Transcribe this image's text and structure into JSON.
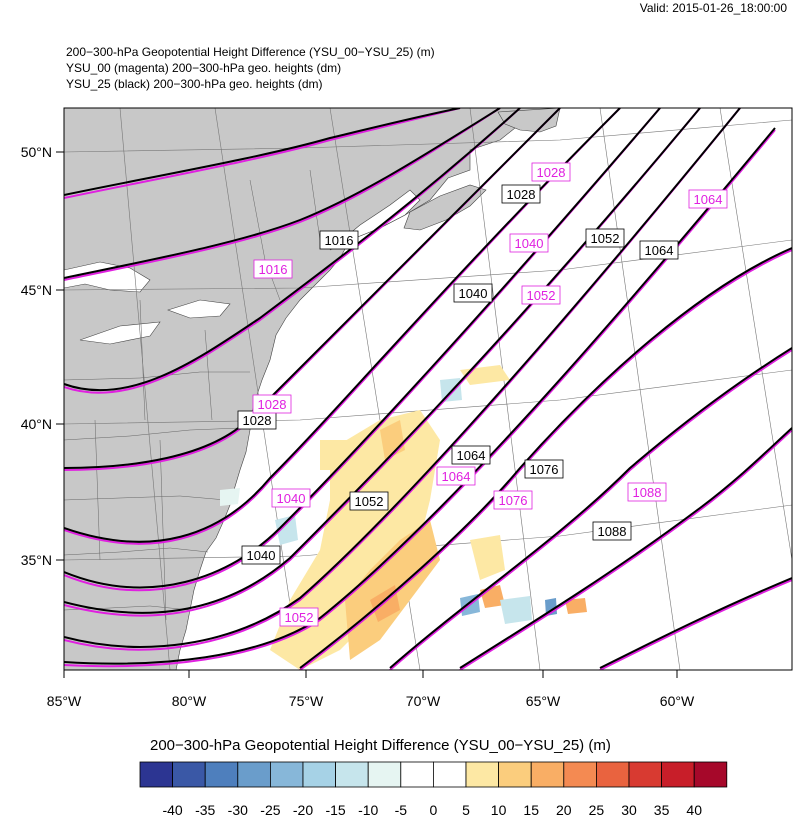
{
  "valid_time": "Valid: 2015-01-26_18:00:00",
  "title_lines": [
    "200−300-hPa Geopotential Height Difference (YSU_00−YSU_25)   (m)",
    "YSU_00 (magenta) 200−300-hPa geo. heights   (dm)",
    "YSU_25 (black) 200−300-hPa geo. heights   (dm)"
  ],
  "axes": {
    "lon_labels": [
      "85°W",
      "80°W",
      "75°W",
      "70°W",
      "65°W",
      "60°W"
    ],
    "lat_labels": [
      "50°N",
      "45°N",
      "40°N",
      "35°N"
    ]
  },
  "contour_labels_black": [
    {
      "text": "1016"
    },
    {
      "text": "1028"
    },
    {
      "text": "1028"
    },
    {
      "text": "1040"
    },
    {
      "text": "1040"
    },
    {
      "text": "1052"
    },
    {
      "text": "1052"
    },
    {
      "text": "1064"
    },
    {
      "text": "1064"
    },
    {
      "text": "1076"
    },
    {
      "text": "1088"
    }
  ],
  "contour_labels_magenta": [
    {
      "text": "1016"
    },
    {
      "text": "1028"
    },
    {
      "text": "1028"
    },
    {
      "text": "1040"
    },
    {
      "text": "1040"
    },
    {
      "text": "1052"
    },
    {
      "text": "1052"
    },
    {
      "text": "1064"
    },
    {
      "text": "1064"
    },
    {
      "text": "1076"
    },
    {
      "text": "1088"
    }
  ],
  "colorbar": {
    "title": "200−300-hPa Geopotential Height Difference (YSU_00−YSU_25)  (m)",
    "levels": [
      "-40",
      "-35",
      "-30",
      "-25",
      "-20",
      "-15",
      "-10",
      "-5",
      "0",
      "5",
      "10",
      "15",
      "20",
      "25",
      "30",
      "35",
      "40"
    ],
    "colors": [
      "#2c3592",
      "#3a58a6",
      "#4e7fbd",
      "#6a9dcb",
      "#87b7d9",
      "#a6d2e6",
      "#c6e5ec",
      "#e6f5f2",
      "#ffffff",
      "#ffffff",
      "#fde8a4",
      "#fbcd7d",
      "#f9ae65",
      "#f48a52",
      "#e9633f",
      "#d83a31",
      "#c81e29",
      "#a6082a"
    ]
  },
  "colors": {
    "land": "#c8c8c8",
    "ocean": "#ffffff",
    "ysu00_contour": "#e020e0",
    "ysu25_contour": "#000000"
  }
}
